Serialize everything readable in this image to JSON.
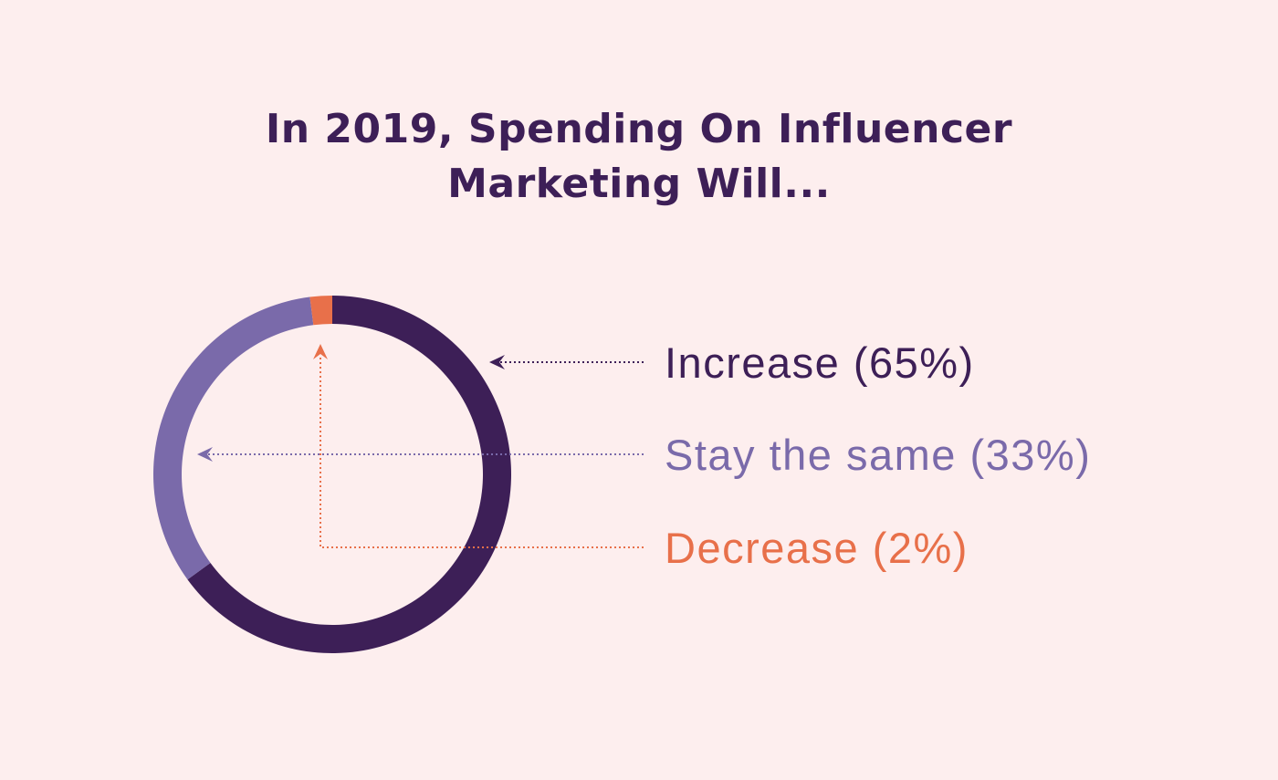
{
  "title": {
    "line1": "In 2019, Spending On Influencer",
    "line2": "Marketing Will..."
  },
  "chart_data": {
    "type": "pie",
    "style": "donut",
    "title": "In 2019, Spending On Influencer Marketing Will...",
    "slices": [
      {
        "label": "Increase (65%)",
        "category": "Increase",
        "value": 65,
        "color": "#3d1f57"
      },
      {
        "label": "Stay the same (33%)",
        "category": "Stay the same",
        "value": 33,
        "color": "#7a6aaa"
      },
      {
        "label": "Decrease (2%)",
        "category": "Decrease",
        "value": 2,
        "color": "#e8704a"
      }
    ],
    "legend_position": "right"
  },
  "colors": {
    "background": "#fdeeee",
    "title": "#3d1f57"
  }
}
